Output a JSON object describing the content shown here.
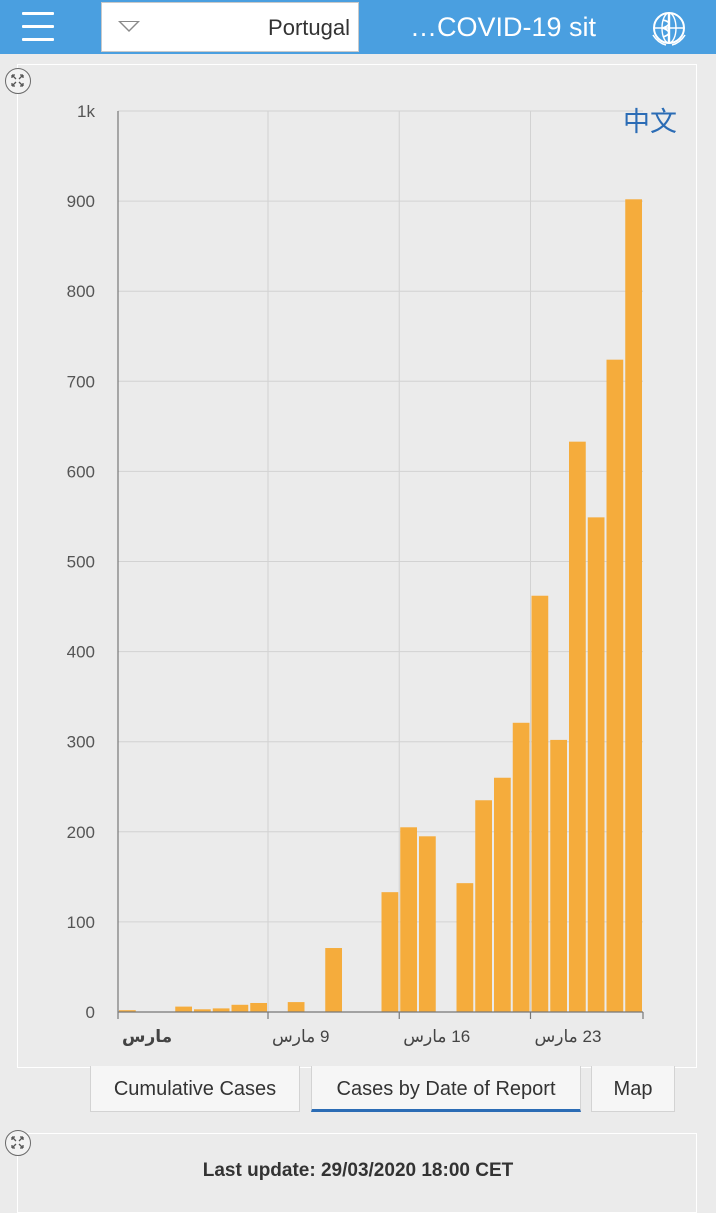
{
  "header": {
    "menu_icon": "hamburger-menu-icon",
    "country_selected": "Portugal",
    "title": "…COVID-19 sit",
    "logo_icon": "who-emblem-icon",
    "color": "#4a9fe0"
  },
  "chart_panel": {
    "language_link": "中文",
    "expand_icon": "expand-arrows-icon"
  },
  "chart_data": {
    "type": "bar",
    "title": "",
    "xlabel": "",
    "ylabel": "",
    "ylim": [
      0,
      1000
    ],
    "y_ticks": [
      "0",
      "100",
      "200",
      "300",
      "400",
      "500",
      "600",
      "700",
      "800",
      "900",
      "1k"
    ],
    "x_tick_labels": [
      "مارس",
      "9 مارس",
      "16 مارس",
      "23 مارس"
    ],
    "categories": [
      "Mar 1",
      "Mar 2",
      "Mar 3",
      "Mar 4",
      "Mar 5",
      "Mar 6",
      "Mar 7",
      "Mar 8",
      "Mar 9",
      "Mar 10",
      "Mar 11",
      "Mar 12",
      "Mar 13",
      "Mar 14",
      "Mar 15",
      "Mar 16",
      "Mar 17",
      "Mar 18",
      "Mar 19",
      "Mar 20",
      "Mar 21",
      "Mar 22",
      "Mar 23",
      "Mar 24",
      "Mar 25",
      "Mar 26",
      "Mar 27",
      "Mar 28"
    ],
    "values": [
      2,
      0,
      0,
      6,
      3,
      4,
      8,
      10,
      0,
      11,
      0,
      71,
      0,
      0,
      133,
      205,
      195,
      0,
      143,
      235,
      260,
      321,
      462,
      302,
      633,
      549,
      724,
      902
    ],
    "bar_color": "#f5ac3c",
    "grid": true
  },
  "tabs": [
    {
      "label": "Cumulative Cases",
      "active": false
    },
    {
      "label": "Cases by Date of Report",
      "active": true
    },
    {
      "label": "Map",
      "active": false
    }
  ],
  "footer": {
    "last_update": "Last update: 29/03/2020 18:00 CET"
  }
}
